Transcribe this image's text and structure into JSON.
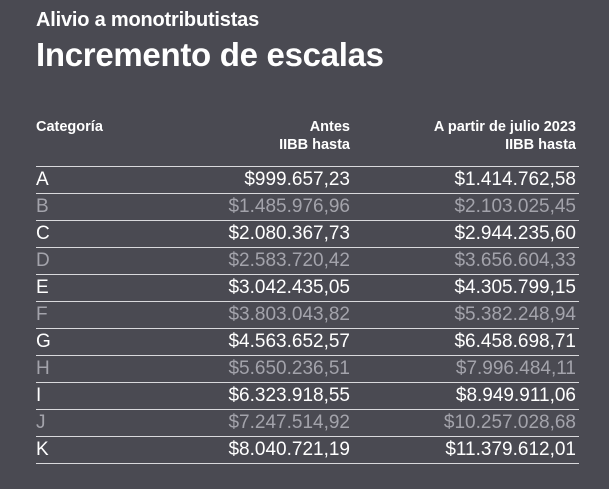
{
  "header": {
    "subtitle": "Alivio a monotributistas",
    "title": "Incremento de escalas"
  },
  "chart_data": {
    "type": "table",
    "columns": [
      {
        "line1": "Categoría",
        "line2": ""
      },
      {
        "line1": "Antes",
        "line2": "IIBB hasta"
      },
      {
        "line1": "A partir de julio 2023",
        "line2": "IIBB hasta"
      }
    ],
    "rows": [
      {
        "categoria": "A",
        "antes": "$999.657,23",
        "desde_julio_2023": "$1.414.762,58"
      },
      {
        "categoria": "B",
        "antes": "$1.485.976,96",
        "desde_julio_2023": "$2.103.025,45"
      },
      {
        "categoria": "C",
        "antes": "$2.080.367,73",
        "desde_julio_2023": "$2.944.235,60"
      },
      {
        "categoria": "D",
        "antes": "$2.583.720,42",
        "desde_julio_2023": "$3.656.604,33"
      },
      {
        "categoria": "E",
        "antes": "$3.042.435,05",
        "desde_julio_2023": "$4.305.799,15"
      },
      {
        "categoria": "F",
        "antes": "$3.803.043,82",
        "desde_julio_2023": "$5.382.248,94"
      },
      {
        "categoria": "G",
        "antes": "$4.563.652,57",
        "desde_julio_2023": "$6.458.698,71"
      },
      {
        "categoria": "H",
        "antes": "$5.650.236,51",
        "desde_julio_2023": "$7.996.484,11"
      },
      {
        "categoria": "I",
        "antes": "$6.323.918,55",
        "desde_julio_2023": "$8.949.911,06"
      },
      {
        "categoria": "J",
        "antes": "$7.247.514,92",
        "desde_julio_2023": "$10.257.028,68"
      },
      {
        "categoria": "K",
        "antes": "$8.040.721,19",
        "desde_julio_2023": "$11.379.612,01"
      }
    ],
    "colors": {
      "background": "#4a4a52",
      "text": "#ffffff",
      "alternate_row_text": "#a3a3ab",
      "rule": "#d9d9dc"
    }
  }
}
